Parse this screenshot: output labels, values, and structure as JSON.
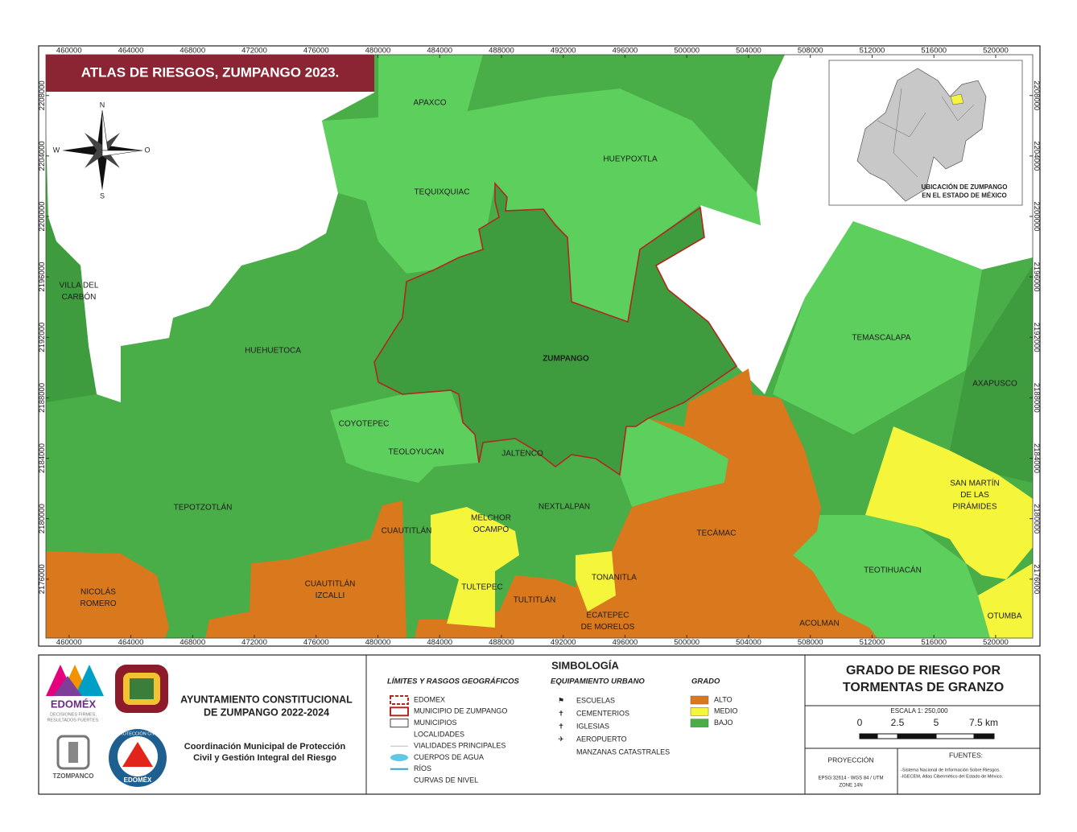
{
  "header": {
    "title": "ATLAS DE RIESGOS, ZUMPANGO 2023."
  },
  "map": {
    "xlim": [
      458500,
      522400
    ],
    "ylim": [
      2172100,
      2210700
    ],
    "xticks": [
      460000,
      464000,
      468000,
      472000,
      476000,
      480000,
      484000,
      488000,
      492000,
      496000,
      500000,
      504000,
      508000,
      512000,
      516000,
      520000
    ],
    "yticks": [
      2176000,
      2180000,
      2184000,
      2188000,
      2192000,
      2196000,
      2200000,
      2204000,
      2208000
    ],
    "compass": {
      "north": "N",
      "south": "S",
      "west": "W",
      "east": "O"
    },
    "labels": [
      [
        "APAXCO"
      ],
      [
        "HUEYPOXTLA"
      ],
      [
        "TEQUIXQUIAC"
      ],
      [
        "VILLA DEL",
        "CARBÓN"
      ],
      [
        "HUEHUETOCA"
      ],
      [
        "ZUMPANGO"
      ],
      [
        "TEMASCALAPA"
      ],
      [
        "AXAPUSCO"
      ],
      [
        "COYOTEPEC"
      ],
      [
        "TEOLOYUCAN"
      ],
      [
        "JALTENCO"
      ],
      [
        "SAN MARTÍN",
        "DE LAS",
        "PIRÁMIDES"
      ],
      [
        "TEPOTZOTLÁN"
      ],
      [
        "NEXTLALPAN"
      ],
      [
        "MELCHOR",
        "OCAMPO"
      ],
      [
        "CUAUTITLÁN"
      ],
      [
        "TECÁMAC"
      ],
      [
        "TEOTIHUACÁN"
      ],
      [
        "TONANITLA"
      ],
      [
        "CUAUTITLÁN",
        "IZCALLI"
      ],
      [
        "NICOLÁS",
        "ROMERO"
      ],
      [
        "TULTEPEC"
      ],
      [
        "TULTITLÁN"
      ],
      [
        "ECATEPEC",
        "DE MORELOS"
      ],
      [
        "ACOLMAN"
      ],
      [
        "OTUMBA"
      ]
    ]
  },
  "inset": {
    "caption": [
      "UBICACIÓN DE ZUMPANGO",
      "EN EL ESTADO DE MÉXICO"
    ]
  },
  "footer": {
    "logos": {
      "edomex": "EDOMÉX",
      "edomex_slogan": [
        "DECISIONES FIRMES,",
        "RESULTADOS FUERTES."
      ],
      "tzompanco": "TZOMPANCO",
      "proteccion": "PROTECCIÓN CIVIL",
      "edomex_badge": "EDOMÉX"
    },
    "institution": [
      "AYUNTAMIENTO CONSTITUCIONAL",
      "DE ZUMPANGO 2022-2024"
    ],
    "office": [
      "Coordinación Municipal de Protección",
      "Civil y Gestión Integral del Riesgo"
    ],
    "legend": {
      "title": "SIMBOLOGÍA",
      "limits": {
        "heading": "LÍMITES Y RASGOS GEOGRÁFICOS",
        "items": [
          "EDOMEX",
          "MUNICIPIO DE ZUMPANGO",
          "MUNICIPIOS",
          "LOCALIDADES",
          "VIALIDADES PRINCIPALES",
          "CUERPOS DE AGUA",
          "RÍOS",
          "CURVAS DE NIVEL"
        ]
      },
      "equipment": {
        "heading": "EQUIPAMIENTO URBANO",
        "items": [
          "ESCUELAS",
          "CEMENTERIOS",
          "IGLESIAS",
          "AEROPUERTO",
          "MANZANAS CATASTRALES"
        ]
      },
      "grade": {
        "heading": "GRADO",
        "items": [
          {
            "label": "ALTO",
            "color": "#d9781c"
          },
          {
            "label": "MEDIO",
            "color": "#f5f53c"
          },
          {
            "label": "BAJO",
            "color": "#49ad48"
          }
        ]
      }
    },
    "map_title": [
      "GRADO DE RIESGO POR",
      "TORMENTAS DE GRANZO"
    ],
    "scale": {
      "text": "ESCALA 1: 250,000",
      "labels": [
        "0",
        "2.5",
        "5",
        "7.5 km"
      ]
    },
    "projection": {
      "heading": "PROYECCIÓN",
      "text": [
        "EPSG:32614 - WGS 84 / UTM",
        "ZONE 14N"
      ]
    },
    "sources": {
      "heading": "FUENTES:",
      "items": [
        "-Sistema Nacional de Información Sobre Riesgos.",
        "-IGECEM, Atlas Cibermético del Estado de México."
      ]
    }
  }
}
